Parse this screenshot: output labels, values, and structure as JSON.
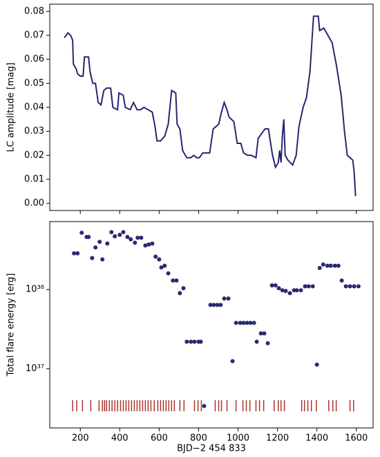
{
  "chart_data": [
    {
      "type": "line",
      "ylabel": "LC amplitude [mag]",
      "color": "#25256e",
      "x": [
        119,
        137,
        151,
        161,
        165,
        179,
        186,
        200,
        214,
        221,
        242,
        249,
        263,
        277,
        291,
        305,
        319,
        333,
        354,
        365,
        389,
        396,
        418,
        428,
        453,
        470,
        488,
        505,
        523,
        565,
        579,
        589,
        607,
        628,
        646,
        663,
        684,
        691,
        705,
        719,
        740,
        761,
        775,
        790,
        804,
        821,
        839,
        856,
        874,
        902,
        916,
        930,
        944,
        954,
        979,
        996,
        1014,
        1028,
        1049,
        1067,
        1091,
        1102,
        1119,
        1137,
        1154,
        1175,
        1190,
        1204,
        1211,
        1218,
        1225,
        1232,
        1239,
        1253,
        1277,
        1295,
        1309,
        1330,
        1347,
        1365,
        1383,
        1407,
        1414,
        1435,
        1456,
        1477,
        1498,
        1523,
        1540,
        1554,
        1568,
        1582,
        1589,
        1596
      ],
      "values": [
        0.069,
        0.071,
        0.07,
        0.068,
        0.058,
        0.056,
        0.054,
        0.053,
        0.053,
        0.061,
        0.061,
        0.055,
        0.05,
        0.05,
        0.042,
        0.041,
        0.047,
        0.048,
        0.048,
        0.04,
        0.039,
        0.046,
        0.045,
        0.04,
        0.039,
        0.042,
        0.039,
        0.039,
        0.04,
        0.038,
        0.032,
        0.026,
        0.026,
        0.028,
        0.033,
        0.047,
        0.046,
        0.033,
        0.031,
        0.022,
        0.019,
        0.019,
        0.02,
        0.019,
        0.019,
        0.021,
        0.021,
        0.021,
        0.031,
        0.033,
        0.038,
        0.042,
        0.039,
        0.036,
        0.034,
        0.025,
        0.025,
        0.021,
        0.02,
        0.02,
        0.019,
        0.027,
        0.029,
        0.031,
        0.031,
        0.02,
        0.015,
        0.017,
        0.022,
        0.017,
        0.028,
        0.035,
        0.02,
        0.018,
        0.016,
        0.02,
        0.032,
        0.04,
        0.044,
        0.055,
        0.078,
        0.078,
        0.072,
        0.073,
        0.07,
        0.067,
        0.058,
        0.045,
        0.03,
        0.02,
        0.019,
        0.018,
        0.013,
        0.003
      ],
      "xlim": [
        45,
        1685
      ],
      "ylim": [
        -0.003,
        0.083
      ],
      "yticks": [
        {
          "value": 0,
          "label": "0.00"
        },
        0.01,
        0.02,
        0.03,
        0.04,
        0.05,
        0.06,
        0.07,
        0.08
      ]
    },
    {
      "type": "scatter",
      "ylabel": "Total flare energy [erg]",
      "xlabel": "BJD−2 454 833",
      "color": "#2a2a72",
      "log_y": true,
      "x": [
        168,
        186,
        207,
        232,
        242,
        260,
        277,
        298,
        312,
        337,
        358,
        375,
        400,
        418,
        439,
        456,
        477,
        491,
        509,
        530,
        547,
        565,
        582,
        600,
        611,
        628,
        646,
        670,
        688,
        705,
        723,
        740,
        761,
        779,
        800,
        811,
        828,
        860,
        877,
        895,
        912,
        930,
        951,
        972,
        990,
        1011,
        1028,
        1046,
        1063,
        1081,
        1095,
        1116,
        1133,
        1151,
        1172,
        1190,
        1207,
        1225,
        1242,
        1263,
        1284,
        1298,
        1319,
        1340,
        1358,
        1379,
        1400,
        1414,
        1432,
        1453,
        1470,
        1491,
        1509,
        1526,
        1547,
        1568,
        1589,
        1611
      ],
      "values": [
        2.86e+38,
        2.86e+38,
        5.2e+38,
        4.6e+38,
        4.6e+38,
        2.5e+38,
        3.4e+38,
        4e+38,
        2.4e+38,
        3.8e+38,
        5.3e+38,
        4.7e+38,
        4.9e+38,
        5.3e+38,
        4.6e+38,
        4.3e+38,
        3.9e+38,
        4.5e+38,
        4.5e+38,
        3.6e+38,
        3.7e+38,
        3.8e+38,
        2.6e+38,
        2.4e+38,
        1.9e+38,
        2e+38,
        1.6e+38,
        1.3e+38,
        1.3e+38,
        9e+37,
        1.04e+38,
        2.2e+37,
        2.2e+37,
        2.2e+37,
        2.2e+37,
        2.2e+37,
        3.4e+36,
        6.4e+37,
        6.4e+37,
        6.4e+37,
        6.4e+37,
        7.7e+37,
        7.7e+37,
        1.25e+37,
        3.8e+37,
        3.8e+37,
        3.8e+37,
        3.8e+37,
        3.8e+37,
        3.8e+37,
        2.2e+37,
        2.8e+37,
        2.8e+37,
        2.1e+37,
        1.13e+38,
        1.13e+38,
        1.04e+38,
        9.8e+37,
        9.6e+37,
        9e+37,
        9.8e+37,
        9.8e+37,
        9.8e+37,
        1.1e+38,
        1.1e+38,
        1.1e+38,
        1.13e+37,
        1.87e+38,
        2.07e+38,
        2e+38,
        2e+38,
        2e+38,
        2e+38,
        1.3e+38,
        1.1e+38,
        1.1e+38,
        1.1e+38,
        1.1e+38
      ],
      "events": {
        "color": "#a8342a",
        "x": [
          161,
          182,
          211,
          253,
          295,
          312,
          323,
          333,
          347,
          361,
          375,
          389,
          404,
          418,
          432,
          446,
          460,
          474,
          488,
          502,
          516,
          530,
          544,
          558,
          575,
          593,
          607,
          621,
          635,
          649,
          663,
          677,
          705,
          726,
          779,
          797,
          814,
          884,
          902,
          916,
          944,
          990,
          1025,
          1042,
          1060,
          1091,
          1109,
          1130,
          1183,
          1204,
          1218,
          1235,
          1323,
          1337,
          1354,
          1372,
          1397,
          1460,
          1481,
          1498,
          1568,
          1586
        ]
      },
      "xlim": [
        45,
        1685
      ],
      "ylim": [
        1.8e+36,
        7.2e+38
      ],
      "xticks": [
        200,
        400,
        600,
        800,
        1000,
        1200,
        1400,
        1600
      ],
      "yticks": [
        {
          "value": 1e+37,
          "label": "10³⁷"
        },
        {
          "value": 1e+38,
          "label": "10³⁸"
        }
      ]
    }
  ]
}
